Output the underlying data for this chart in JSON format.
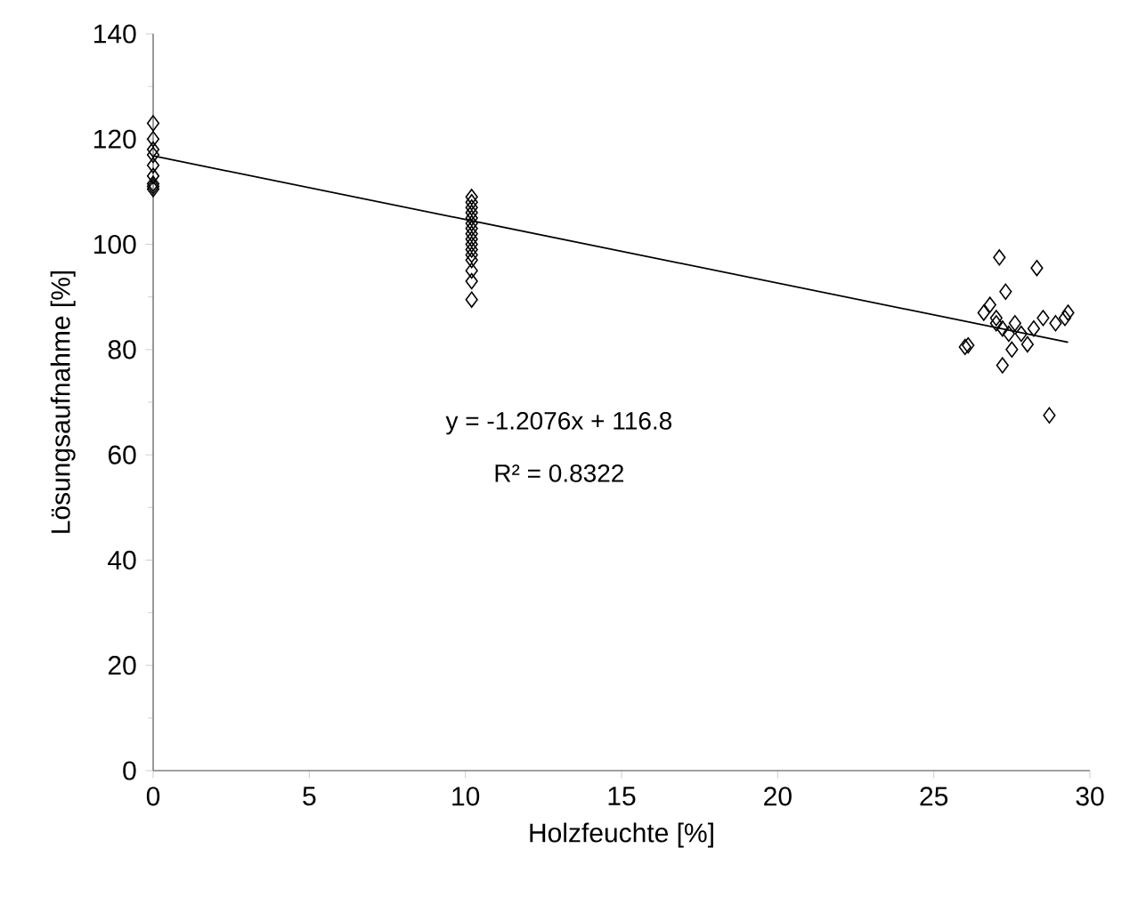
{
  "chart_data": {
    "type": "scatter",
    "xlabel": "Holzfeuchte [%]",
    "ylabel": "Lösungsaufnahme [%]",
    "xlim": [
      0,
      30
    ],
    "xticks": [
      0,
      5,
      10,
      15,
      20,
      25,
      30
    ],
    "ylim": [
      0,
      140
    ],
    "yticks": [
      0,
      20,
      40,
      60,
      80,
      100,
      120,
      140
    ],
    "annotations": [
      "y = -1.2076x + 116.8",
      "R² = 0.8322"
    ],
    "series": [
      {
        "marker": "diamond",
        "color": "#000000",
        "x": [
          0,
          0,
          0,
          0,
          0,
          0,
          0,
          0,
          0,
          10.2,
          10.2,
          10.2,
          10.2,
          10.2,
          10.2,
          10.2,
          10.2,
          10.2,
          10.2,
          10.2,
          10.2,
          10.2,
          10.2,
          10.2,
          10.2,
          26.0,
          26.1,
          26.6,
          26.8,
          27.0,
          27.0,
          27.1,
          27.2,
          27.3,
          27.2,
          27.4,
          27.5,
          27.6,
          27.8,
          28.0,
          28.2,
          28.3,
          28.5,
          28.7,
          28.9,
          29.2,
          29.3
        ],
        "values": [
          123,
          120,
          118,
          117,
          115,
          113,
          111,
          110.5,
          111.5,
          109,
          108,
          107,
          106,
          105,
          104,
          103,
          102,
          101,
          100,
          99,
          98,
          97,
          95,
          93,
          89.5,
          80.5,
          80.8,
          87,
          88.5,
          85,
          86,
          97.5,
          84,
          91,
          77,
          83,
          80,
          85,
          83,
          81,
          84,
          95.5,
          86,
          67.5,
          85,
          86,
          87
        ]
      },
      {
        "type": "line",
        "marker": "none",
        "color": "#000000",
        "x": [
          0,
          29.3
        ],
        "values": [
          116.8,
          81.4
        ]
      }
    ]
  }
}
